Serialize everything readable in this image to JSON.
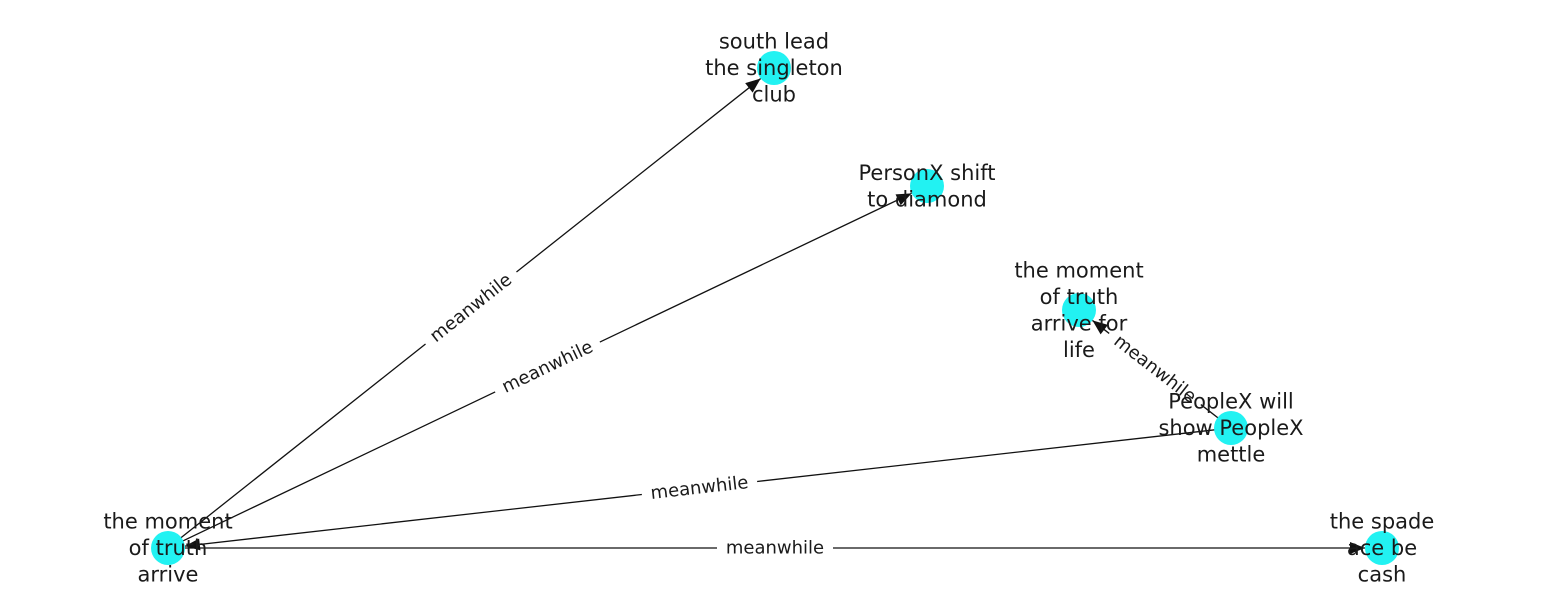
{
  "diagram": {
    "node_color": "#22f2f2",
    "edge_color": "#111111",
    "nodes": [
      {
        "id": "n1",
        "lines": [
          "south lead",
          "the singleton",
          "club"
        ]
      },
      {
        "id": "n2",
        "lines": [
          "PersonX shift",
          "to diamond"
        ]
      },
      {
        "id": "n3",
        "lines": [
          "the moment",
          "of truth",
          "arrive for",
          "life"
        ]
      },
      {
        "id": "n4",
        "lines": [
          "PeopleX will",
          "show PeopleX",
          "mettle"
        ]
      },
      {
        "id": "n5",
        "lines": [
          "the moment",
          "of truth",
          "arrive"
        ]
      },
      {
        "id": "n6",
        "lines": [
          "the spade",
          "ace be",
          "cash"
        ]
      }
    ],
    "edges": [
      {
        "from": "n5",
        "to": "n1",
        "label": "meanwhile"
      },
      {
        "from": "n5",
        "to": "n2",
        "label": "meanwhile"
      },
      {
        "from": "n4",
        "to": "n3",
        "label": "meanwhile"
      },
      {
        "from": "n4",
        "to": "n5",
        "label": "meanwhile"
      },
      {
        "from": "n5",
        "to": "n6",
        "label": "meanwhile"
      }
    ]
  }
}
